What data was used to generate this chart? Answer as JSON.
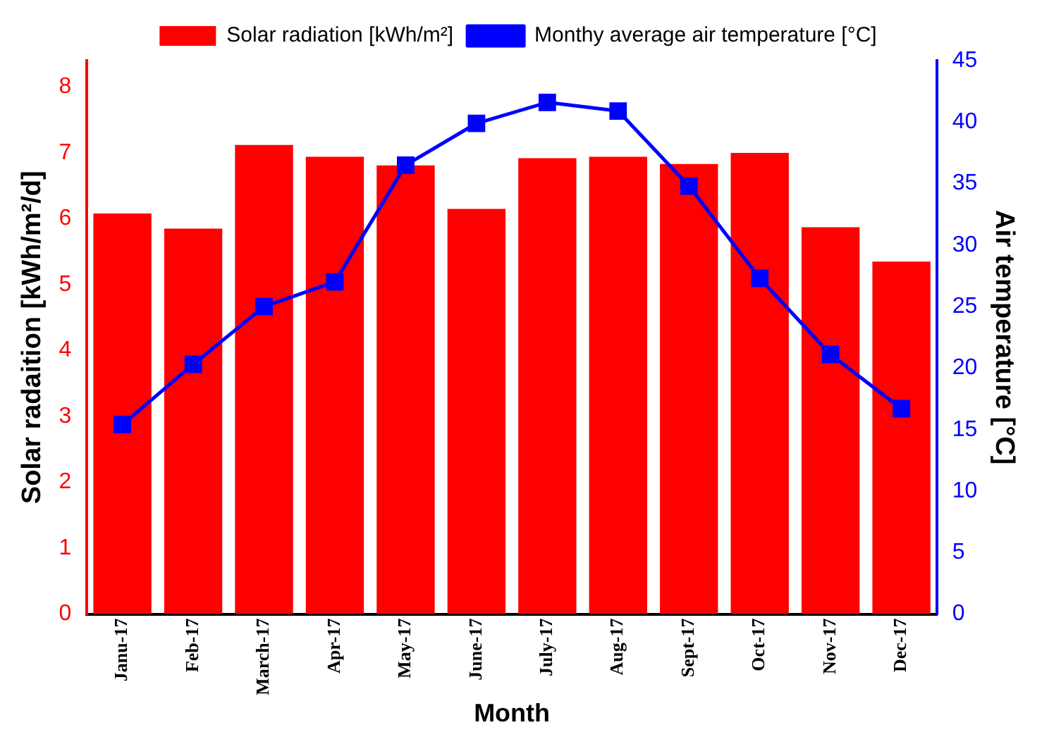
{
  "chart_data": {
    "type": "bar",
    "xlabel": "Month",
    "ylabel": "Solar radaition [kWh/m²/d]",
    "y2label": "Air temperature [°C]",
    "categories": [
      "Janu-17",
      "Feb-17",
      "March-17",
      "Apr-17",
      "May-17",
      "June-17",
      "July-17",
      "Aug-17",
      "Sept-17",
      "Oct-17",
      "Nov-17",
      "Dec-17"
    ],
    "series": [
      {
        "name": "Solar radiation [kWh/m²]",
        "color": "#ff0000",
        "values": [
          6.08,
          5.85,
          7.12,
          6.94,
          6.81,
          6.15,
          6.92,
          6.94,
          6.83,
          7.0,
          5.87,
          5.35
        ]
      },
      {
        "name": "Monthy average air temperature [°C]",
        "type": "line",
        "axis": "y2",
        "color": "#0000ff",
        "values": [
          15.4,
          20.3,
          25,
          27,
          36.5,
          39.9,
          41.6,
          40.9,
          34.8,
          27.3,
          21.1,
          16.7
        ]
      }
    ],
    "ylim": [
      0,
      8.4
    ],
    "yticks": [
      0,
      1,
      2,
      3,
      4,
      5,
      6,
      7,
      8
    ],
    "y2lim": [
      0,
      45
    ],
    "y2ticks": [
      0,
      5,
      10,
      15,
      20,
      25,
      30,
      35,
      40,
      45
    ],
    "grid": false,
    "legend": "top",
    "marker": "square",
    "line_style": "solid"
  }
}
